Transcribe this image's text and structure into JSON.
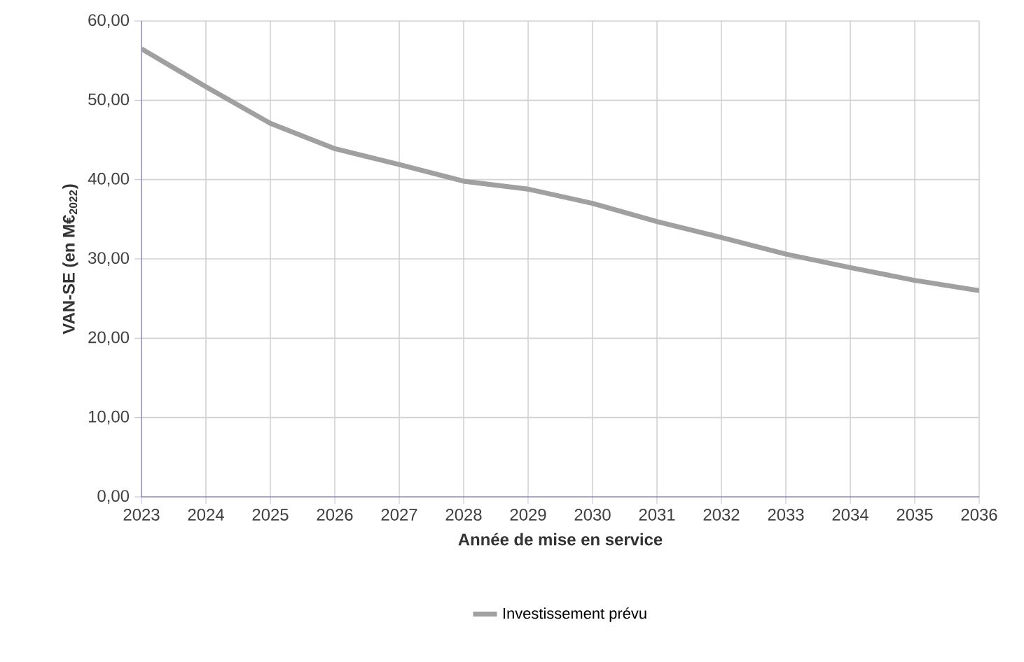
{
  "chart_data": {
    "type": "line",
    "xlabel": "Année de mise en service",
    "ylabel": "VAN-SE (en M€$_{2022}$)",
    "categories": [
      "2023",
      "2024",
      "2025",
      "2026",
      "2027",
      "2028",
      "2029",
      "2030",
      "2031",
      "2032",
      "2033",
      "2034",
      "2035",
      "2036"
    ],
    "series": [
      {
        "name": "Investissement prévu",
        "color": "#a0a0a0",
        "values": [
          56.5,
          51.7,
          47.1,
          43.9,
          41.9,
          39.8,
          38.8,
          37.0,
          34.7,
          32.7,
          30.6,
          28.9,
          27.3,
          26.0
        ]
      }
    ],
    "ylim": [
      0,
      60
    ],
    "yticks": [
      {
        "value": 0,
        "label": "0,00"
      },
      {
        "value": 10,
        "label": "10,00"
      },
      {
        "value": 20,
        "label": "20,00"
      },
      {
        "value": 30,
        "label": "30,00"
      },
      {
        "value": 40,
        "label": "40,00"
      },
      {
        "value": 50,
        "label": "50,00"
      },
      {
        "value": 60,
        "label": "60,00"
      }
    ],
    "grid": true,
    "legend": "bottom",
    "marker": "none",
    "line_style": "solid"
  }
}
